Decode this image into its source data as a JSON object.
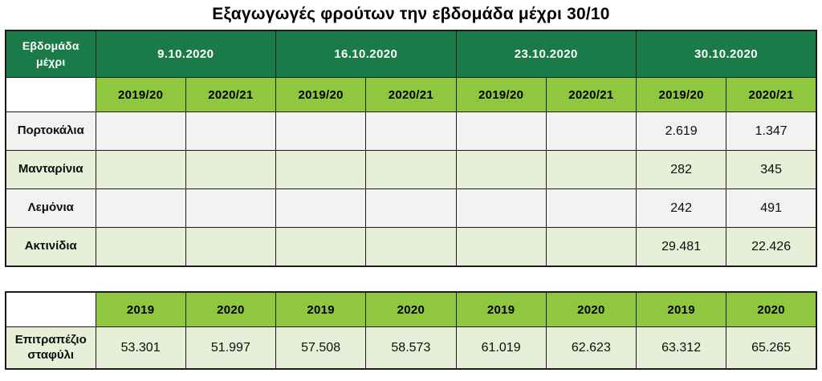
{
  "title": "Εξαγωγωγές φρούτων την εβδομάδα μέχρι 30/10",
  "colors": {
    "header_green": "#1a7a48",
    "subheader_green": "#8fc73f",
    "row_pale_green": "#e7efd9",
    "row_grey": "#f2f2f1",
    "border": "#1c1c1c"
  },
  "chart_data": [
    {
      "type": "table",
      "title": "Εξαγωγωγές φρούτων την εβδομάδα μέχρι 30/10",
      "corner_header": "Εβδομάδα μέχρι",
      "group_headers": [
        "9.10.2020",
        "16.10.2020",
        "23.10.2020",
        "30.10.2020"
      ],
      "sub_headers": [
        "2019/20",
        "2020/21",
        "2019/20",
        "2020/21",
        "2019/20",
        "2020/21",
        "2019/20",
        "2020/21"
      ],
      "rows": [
        {
          "label": "Πορτοκάλια",
          "values": [
            "",
            "",
            "",
            "",
            "",
            "",
            "2.619",
            "1.347"
          ]
        },
        {
          "label": "Μανταρίνια",
          "values": [
            "",
            "",
            "",
            "",
            "",
            "",
            "282",
            "345"
          ]
        },
        {
          "label": "Λεμόνια",
          "values": [
            "",
            "",
            "",
            "",
            "",
            "",
            "242",
            "491"
          ]
        },
        {
          "label": "Ακτινίδια",
          "values": [
            "",
            "",
            "",
            "",
            "",
            "",
            "29.481",
            "22.426"
          ]
        }
      ],
      "layout_hints": {
        "grid": "on",
        "empty_cells": "weeks 9.10–23.10 have no values shown"
      }
    },
    {
      "type": "table",
      "corner_header": "",
      "sub_headers": [
        "2019",
        "2020",
        "2019",
        "2020",
        "2019",
        "2020",
        "2019",
        "2020"
      ],
      "rows": [
        {
          "label": "Επιτραπέζιο σταφύλι",
          "values": [
            "53.301",
            "51.997",
            "57.508",
            "58.573",
            "61.019",
            "62.623",
            "63.312",
            "65.265"
          ]
        }
      ]
    }
  ]
}
